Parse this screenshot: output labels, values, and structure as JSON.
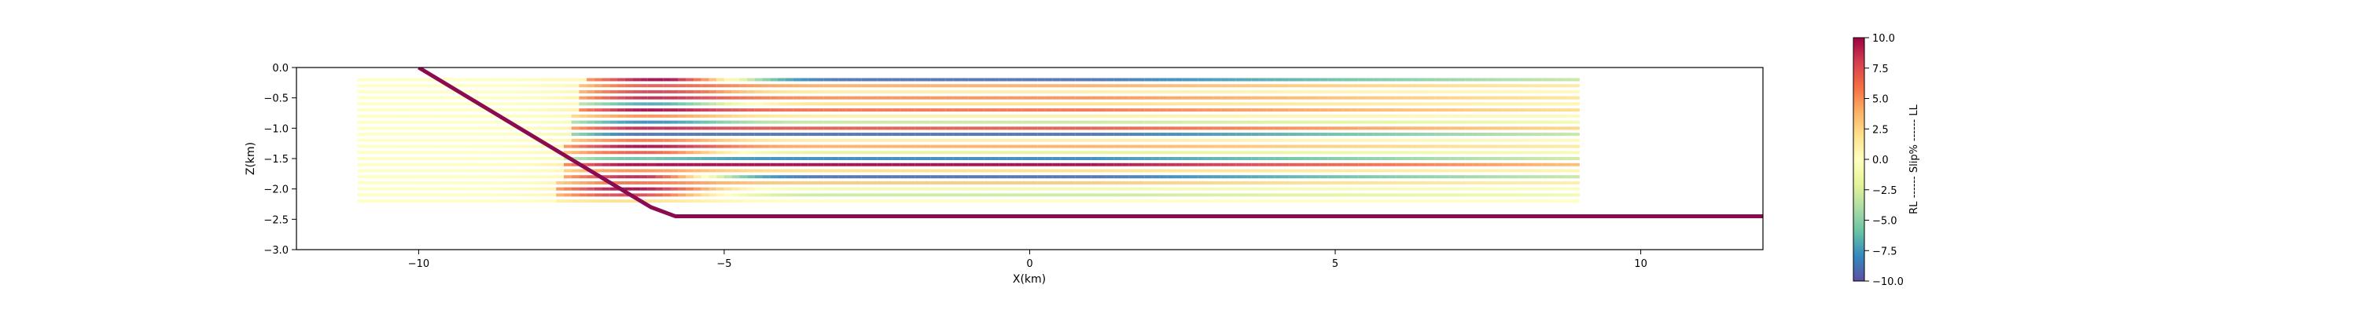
{
  "chart_data": {
    "type": "line",
    "xlabel": "X(km)",
    "ylabel": "Z(km)",
    "xlim": [
      -12,
      12
    ],
    "ylim": [
      -3.0,
      0.0
    ],
    "xticks": [
      -10,
      -5,
      0,
      5,
      10
    ],
    "xtick_labels": [
      "−10",
      "−5",
      "0",
      "5",
      "10"
    ],
    "yticks": [
      0.0,
      -0.5,
      -1.0,
      -1.5,
      -2.0,
      -2.5,
      -3.0
    ],
    "ytick_labels": [
      "0.0",
      "−0.5",
      "−1.0",
      "−1.5",
      "−2.0",
      "−2.5",
      "−3.0"
    ],
    "grid": false,
    "colorbar": {
      "label": "RL ------ Slip% ------ LL",
      "colormap": "Spectral_r",
      "range": [
        -10,
        10
      ],
      "ticks": [
        10.0,
        7.5,
        5.0,
        2.5,
        0.0,
        -2.5,
        -5.0,
        -7.5,
        -10.0
      ],
      "tick_labels": [
        "10.0",
        "7.5",
        "5.0",
        "2.5",
        "0.0",
        "−2.5",
        "−5.0",
        "−7.5",
        "−10.0"
      ]
    },
    "fault": {
      "color": "#8b0a50",
      "points": [
        [
          -10,
          0.0
        ],
        [
          -6.2,
          -2.3
        ],
        [
          -5.8,
          -2.45
        ],
        [
          12,
          -2.45
        ]
      ]
    },
    "horizon_geometry": {
      "x_start": -11,
      "x_end": 9,
      "z_top": -0.2,
      "z_bottom": -2.2,
      "count": 21,
      "ramp_center_x": -7.0,
      "ramp_top_x": -5.8
    },
    "horizon_slip": [
      {
        "z0": -0.2,
        "near_fault": 10,
        "far": -9
      },
      {
        "z0": -0.3,
        "near_fault": 7,
        "far": 4
      },
      {
        "z0": -0.4,
        "near_fault": 8,
        "far": 1
      },
      {
        "z0": -0.5,
        "near_fault": 9,
        "far": 5
      },
      {
        "z0": -0.6,
        "near_fault": -7,
        "far": 2
      },
      {
        "z0": -0.7,
        "near_fault": 10,
        "far": 6
      },
      {
        "z0": -0.8,
        "near_fault": 5,
        "far": 1
      },
      {
        "z0": -0.9,
        "near_fault": -8,
        "far": -3
      },
      {
        "z0": -1.0,
        "near_fault": 9,
        "far": 7
      },
      {
        "z0": -1.1,
        "near_fault": -9,
        "far": -9
      },
      {
        "z0": -1.2,
        "near_fault": 6,
        "far": 1
      },
      {
        "z0": -1.3,
        "near_fault": 10,
        "far": 4
      },
      {
        "z0": -1.4,
        "near_fault": 7,
        "far": -2
      },
      {
        "z0": -1.5,
        "near_fault": -6,
        "far": -8
      },
      {
        "z0": -1.6,
        "near_fault": 10,
        "far": 10
      },
      {
        "z0": -1.7,
        "near_fault": 5,
        "far": 2
      },
      {
        "z0": -1.8,
        "near_fault": 9,
        "far": -9
      },
      {
        "z0": -1.9,
        "near_fault": 6,
        "far": 3
      },
      {
        "z0": -2.0,
        "near_fault": 10,
        "far": -1
      },
      {
        "z0": -2.1,
        "near_fault": 8,
        "far": -3
      },
      {
        "z0": -2.2,
        "near_fault": 2,
        "far": 0
      }
    ]
  }
}
